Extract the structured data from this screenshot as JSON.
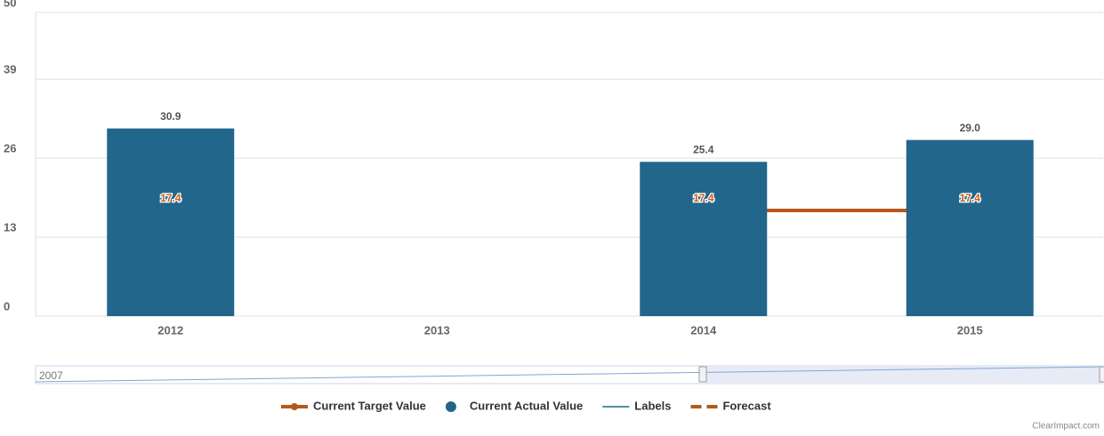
{
  "chart_data": {
    "type": "bar",
    "categories": [
      "2012",
      "2013",
      "2014",
      "2015"
    ],
    "series": [
      {
        "name": "Current Target Value",
        "color": "#b5591b",
        "values": [
          17.4,
          null,
          17.4,
          17.4
        ],
        "value_labels": [
          "17.4",
          null,
          "17.4",
          "17.4"
        ]
      },
      {
        "name": "Current Actual Value",
        "color": "#22668c",
        "values": [
          30.9,
          null,
          25.4,
          29.0
        ],
        "value_labels": [
          "30.9",
          null,
          "25.4",
          "29.0"
        ]
      },
      {
        "name": "Labels",
        "color": "#22668c",
        "values": [
          null,
          null,
          null,
          null
        ]
      },
      {
        "name": "Forecast",
        "color": "#b5591b",
        "values": [
          null,
          null,
          17.4,
          17.4
        ]
      }
    ],
    "ylim": [
      0,
      50
    ],
    "yticks": [
      0,
      13,
      26,
      39,
      50
    ],
    "grid": true,
    "navigator": {
      "label": "2007"
    },
    "credit": "ClearImpact.com"
  }
}
